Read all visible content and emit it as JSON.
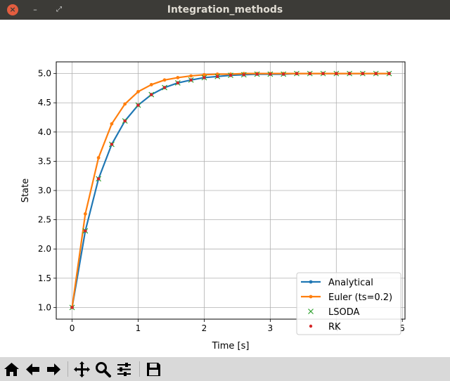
{
  "window": {
    "title": "Integration_methods"
  },
  "toolbar": {
    "buttons": [
      {
        "name": "home-button",
        "icon": "home-icon"
      },
      {
        "name": "back-button",
        "icon": "arrow-left-icon"
      },
      {
        "name": "forward-button",
        "icon": "arrow-right-icon"
      },
      {
        "name": "pan-button",
        "icon": "move-icon"
      },
      {
        "name": "zoom-button",
        "icon": "magnifier-icon"
      },
      {
        "name": "configure-subplots-button",
        "icon": "sliders-icon"
      },
      {
        "name": "save-button",
        "icon": "floppy-disk-icon"
      }
    ]
  },
  "colors": {
    "analytical": "#1f77b4",
    "euler": "#ff7f0e",
    "lsoda": "#2ca02c",
    "rk": "#d62728"
  },
  "chart_data": {
    "type": "line",
    "xlabel": "Time [s]",
    "ylabel": "State",
    "xlim": [
      -0.24,
      5.04
    ],
    "ylim": [
      0.8,
      5.2
    ],
    "xticks": [
      0,
      1,
      2,
      3,
      4,
      5
    ],
    "yticks": [
      1.0,
      1.5,
      2.0,
      2.5,
      3.0,
      3.5,
      4.0,
      4.5,
      5.0
    ],
    "grid": true,
    "legend_position": "lower-right",
    "x": [
      0,
      0.2,
      0.4,
      0.6,
      0.8,
      1.0,
      1.2,
      1.4,
      1.6,
      1.8,
      2.0,
      2.2,
      2.4,
      2.6,
      2.8,
      3.0,
      3.2,
      3.4,
      3.6,
      3.8,
      4.0,
      4.2,
      4.4,
      4.6,
      4.8
    ],
    "series": [
      {
        "name": "Analytical",
        "style": "line-dot",
        "values": [
          1.0,
          2.31,
          3.2,
          3.79,
          4.19,
          4.46,
          4.64,
          4.76,
          4.84,
          4.89,
          4.93,
          4.95,
          4.97,
          4.98,
          4.99,
          4.99,
          4.99,
          5.0,
          5.0,
          5.0,
          5.0,
          5.0,
          5.0,
          5.0,
          5.0
        ]
      },
      {
        "name": "Euler (ts=0.2)",
        "style": "line-dot",
        "values": [
          1.0,
          2.6,
          3.56,
          4.14,
          4.48,
          4.69,
          4.81,
          4.89,
          4.93,
          4.96,
          4.98,
          4.99,
          4.99,
          5.0,
          5.0,
          5.0,
          5.0,
          5.0,
          5.0,
          5.0,
          5.0,
          5.0,
          5.0,
          5.0,
          5.0
        ]
      },
      {
        "name": "LSODA",
        "style": "x-marker",
        "values": [
          1.0,
          2.31,
          3.2,
          3.79,
          4.19,
          4.46,
          4.64,
          4.76,
          4.84,
          4.89,
          4.93,
          4.95,
          4.97,
          4.98,
          4.99,
          4.99,
          4.99,
          5.0,
          5.0,
          5.0,
          5.0,
          5.0,
          5.0,
          5.0,
          5.0
        ]
      },
      {
        "name": "RK",
        "style": "dot-marker",
        "values": [
          1.0,
          2.31,
          3.2,
          3.79,
          4.19,
          4.46,
          4.64,
          4.76,
          4.84,
          4.89,
          4.93,
          4.95,
          4.97,
          4.98,
          4.99,
          4.99,
          4.99,
          5.0,
          5.0,
          5.0,
          5.0,
          5.0,
          5.0,
          5.0,
          5.0
        ]
      }
    ]
  }
}
